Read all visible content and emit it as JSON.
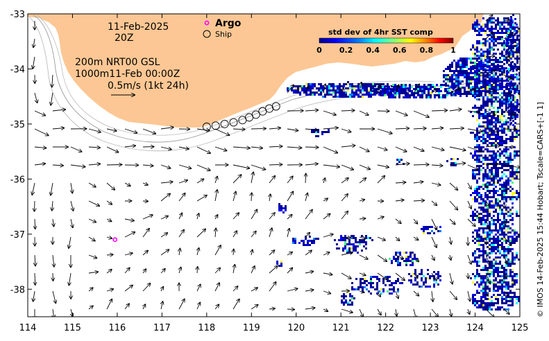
{
  "map": {
    "date_line1": "11-Feb-2025",
    "date_line2": "20Z",
    "legend_argo": "Argo",
    "legend_ship": "Ship",
    "product_line1": "200m  NRT00 GSL",
    "product_line2": "1000m11-Feb 00:00Z",
    "scale_label": "0.5m/s (1kt 24h)",
    "credit": "© IMOS 14-Feb-2025 15:44 Hobart; Tscale=CARS+[-1 1]",
    "colors": {
      "land": "#fcc794",
      "argo": "#ff00ff",
      "ocean": "#ffffff"
    },
    "x_axis": {
      "min": 114,
      "max": 125,
      "ticks": [
        "114",
        "115",
        "116",
        "117",
        "118",
        "119",
        "120",
        "121",
        "122",
        "123",
        "124",
        "125"
      ]
    },
    "y_axis": {
      "min": -38.5,
      "max": -33,
      "ticks": [
        "-33",
        "-34",
        "-35",
        "-36",
        "-37",
        "-38"
      ]
    },
    "argo_float": {
      "lon": 115.95,
      "lat": -37.1
    },
    "ship_track": [
      [
        118.0,
        -35.05
      ],
      [
        118.2,
        -35.03
      ],
      [
        118.4,
        -35.0
      ],
      [
        118.6,
        -34.97
      ],
      [
        118.8,
        -34.93
      ],
      [
        118.95,
        -34.88
      ],
      [
        119.1,
        -34.83
      ],
      [
        119.25,
        -34.77
      ],
      [
        119.4,
        -34.72
      ],
      [
        119.55,
        -34.68
      ]
    ]
  },
  "colorbar": {
    "title": "std dev of 4hr SST comp",
    "ticks": [
      "0",
      "0.2",
      "0.4",
      "0.6",
      "0.8",
      "1"
    ],
    "range": [
      0,
      1
    ],
    "stops": [
      "#00008f",
      "#0000ff",
      "#0080ff",
      "#00ffff",
      "#80ff80",
      "#ffff00",
      "#ff8000",
      "#ff0000",
      "#800000"
    ]
  }
}
